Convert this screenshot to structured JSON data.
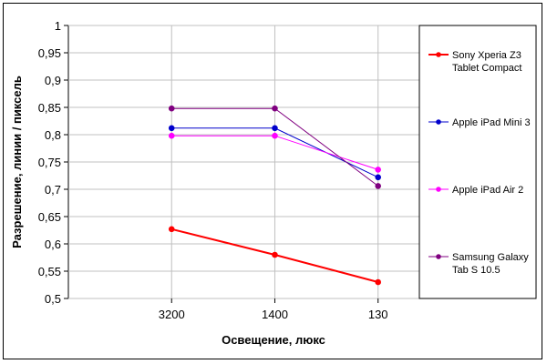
{
  "chart_data": {
    "type": "line",
    "categories": [
      "3200",
      "1400",
      "130"
    ],
    "xlabel": "Освещение, люкс",
    "ylabel": "Разрешение, линии / пиксель",
    "ylim": [
      0.5,
      1
    ],
    "yticks": [
      "0,5",
      "0,55",
      "0,6",
      "0,65",
      "0,7",
      "0,75",
      "0,8",
      "0,85",
      "0,9",
      "0,95",
      "1"
    ],
    "grid": true,
    "legend_position": "right",
    "series": [
      {
        "name": "Sony Xperia Z3 Tablet Compact",
        "legend_lines": [
          "Sony Xperia Z3",
          "Tablet Compact"
        ],
        "color": "#ff0000",
        "values": [
          0.627,
          0.58,
          0.53
        ]
      },
      {
        "name": "Apple iPad Mini 3",
        "legend_lines": [
          "Apple iPad Mini 3"
        ],
        "color": "#0000cc",
        "values": [
          0.812,
          0.812,
          0.722
        ]
      },
      {
        "name": "Apple iPad Air 2",
        "legend_lines": [
          "Apple iPad Air 2"
        ],
        "color": "#ff00ff",
        "values": [
          0.798,
          0.798,
          0.736
        ]
      },
      {
        "name": "Samsung Galaxy Tab S 10.5",
        "legend_lines": [
          "Samsung Galaxy",
          "Tab S 10.5"
        ],
        "color": "#800080",
        "values": [
          0.848,
          0.848,
          0.706
        ]
      }
    ]
  }
}
